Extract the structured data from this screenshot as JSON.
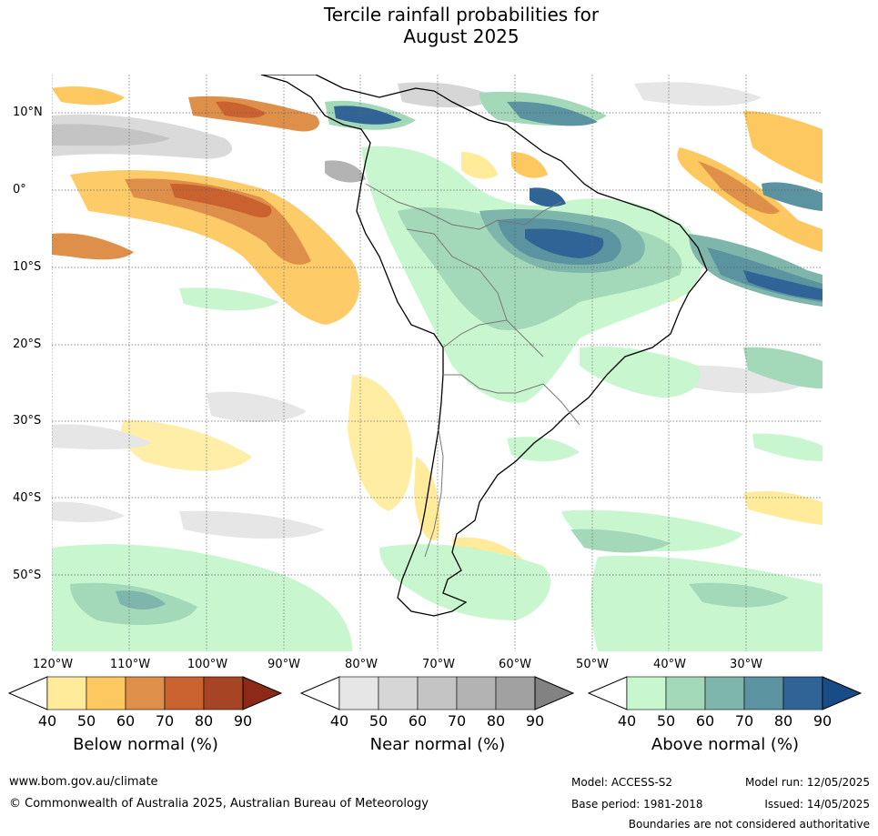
{
  "title": {
    "line1": "Tercile rainfall probabilities for",
    "line2": "August 2025"
  },
  "map": {
    "lat_labels": [
      "10°N",
      "0°",
      "10°S",
      "20°S",
      "30°S",
      "40°S",
      "50°S"
    ],
    "lon_labels": [
      "120°W",
      "110°W",
      "100°W",
      "90°W",
      "80°W",
      "70°W",
      "60°W",
      "50°W",
      "40°W",
      "30°W"
    ],
    "lat_range": [
      -60,
      15
    ],
    "lon_range": [
      -120,
      -20
    ],
    "gridlines": "dotted"
  },
  "legends": [
    {
      "name": "Below normal (%)",
      "ticks": [
        "40",
        "50",
        "60",
        "70",
        "80",
        "90"
      ],
      "colors": [
        "#ffeb99",
        "#fdc85f",
        "#de8f49",
        "#c9622e",
        "#a84426",
        "#8c2a17"
      ]
    },
    {
      "name": "Near normal (%)",
      "ticks": [
        "40",
        "50",
        "60",
        "70",
        "80",
        "90"
      ],
      "colors": [
        "#e6e6e6",
        "#d6d6d6",
        "#c4c4c4",
        "#b3b3b3",
        "#a1a1a1",
        "#828282"
      ]
    },
    {
      "name": "Above normal (%)",
      "ticks": [
        "40",
        "50",
        "60",
        "70",
        "80",
        "90"
      ],
      "colors": [
        "#c8f7cf",
        "#a3d8b9",
        "#7eb6ab",
        "#5b93a0",
        "#306396",
        "#174c86"
      ]
    }
  ],
  "footer": {
    "website": "www.bom.gov.au/climate",
    "copyright": "© Commonwealth of Australia 2025, Australian Bureau of Meteorology",
    "model": "Model: ACCESS-S2",
    "model_run": "Model run: 12/05/2025",
    "base_period": "Base period: 1981-2018",
    "issued": "Issued: 14/05/2025",
    "disclaimer": "Boundaries are not considered authoritative"
  }
}
